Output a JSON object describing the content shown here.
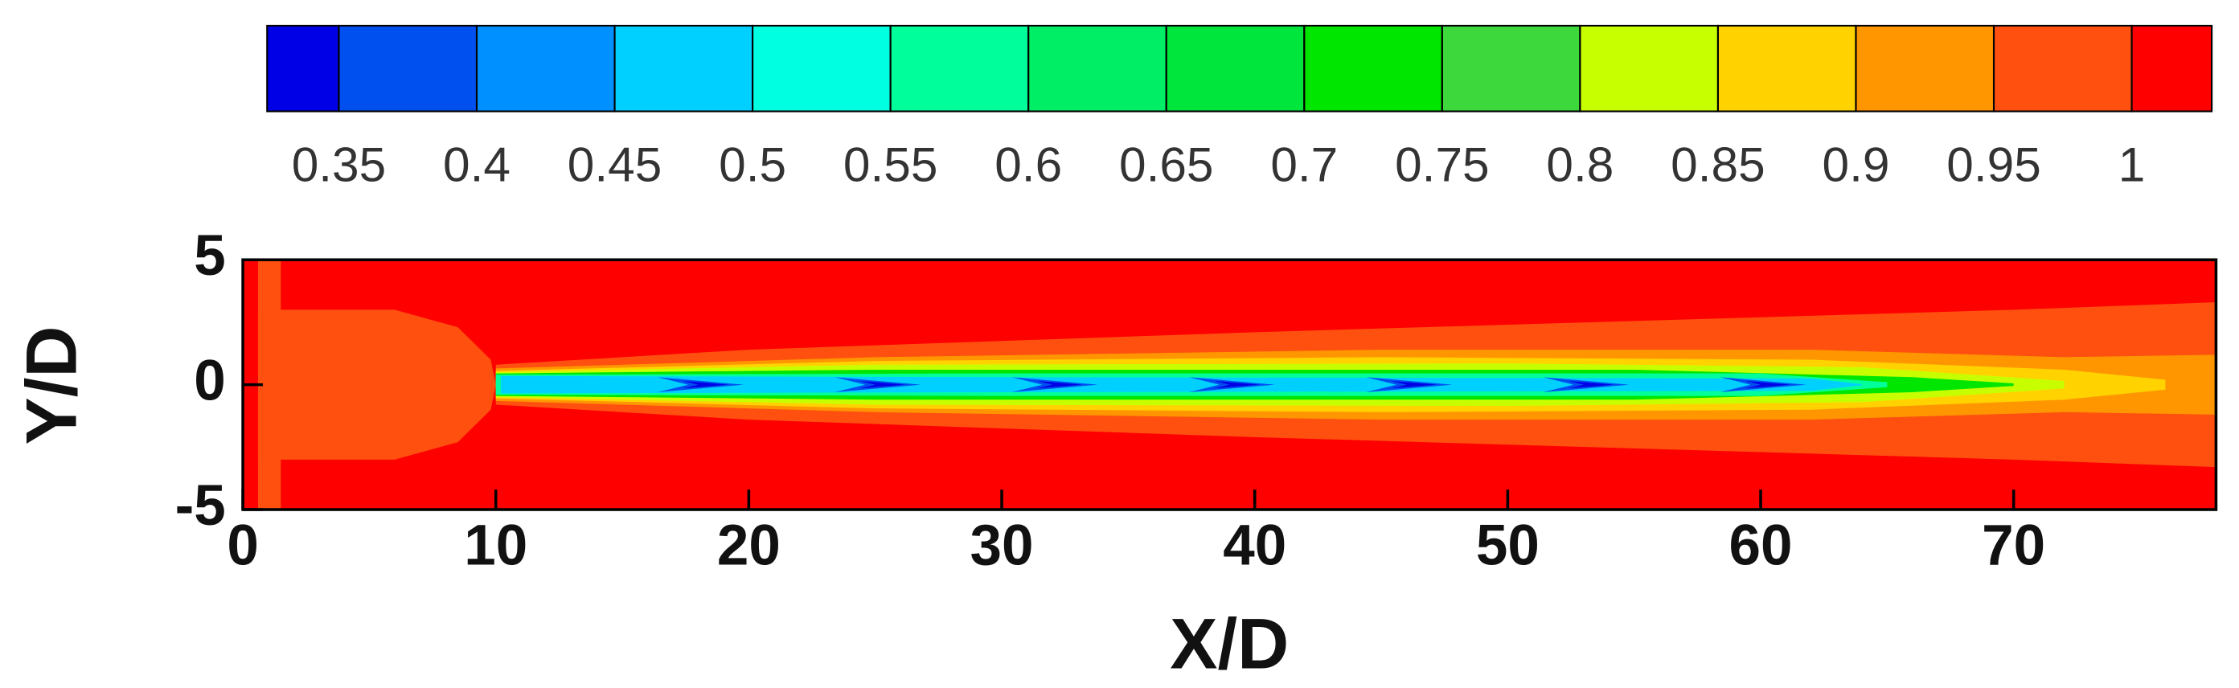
{
  "chart_data": {
    "type": "contour",
    "xlabel": "X/D",
    "ylabel": "Y/D",
    "xlim": [
      0,
      78
    ],
    "ylim": [
      -5,
      5
    ],
    "xticks": [
      0,
      10,
      20,
      30,
      40,
      50,
      60,
      70
    ],
    "yticks": [
      -5,
      0,
      5
    ],
    "colorbar": {
      "clim": [
        0.324,
        1.029
      ],
      "levels": [
        0.35,
        0.4,
        0.45,
        0.5,
        0.55,
        0.6,
        0.65,
        0.7,
        0.75,
        0.8,
        0.85,
        0.9,
        0.95,
        1
      ],
      "colors": [
        "#0000e6",
        "#0050f0",
        "#0090ff",
        "#00d0ff",
        "#00ffe0",
        "#00ff9a",
        "#00ee66",
        "#00e63c",
        "#00e600",
        "#3cd83c",
        "#c8ff00",
        "#ffd200",
        "#ff9600",
        "#ff5010",
        "#ff0000"
      ]
    }
  }
}
